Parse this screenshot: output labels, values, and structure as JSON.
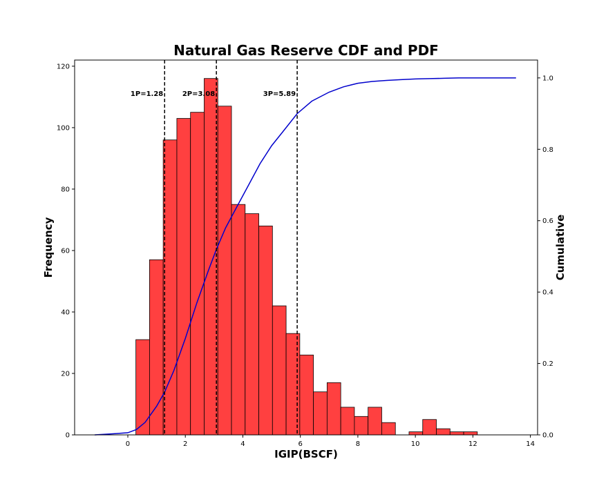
{
  "chart_data": {
    "type": "bar",
    "title": "Natural Gas Reserve CDF and PDF",
    "xlabel": "IGIP(BSCF)",
    "ylabel": "Frequency",
    "y2label": "Cumulative",
    "xlim": [
      -1.85,
      14.25
    ],
    "ylim": [
      0,
      122
    ],
    "y2lim": [
      0,
      1.05
    ],
    "xticks": [
      0,
      2,
      4,
      6,
      8,
      10,
      12,
      14
    ],
    "yticks": [
      0,
      20,
      40,
      60,
      80,
      100,
      120
    ],
    "y2ticks": [
      0.0,
      0.2,
      0.4,
      0.6,
      0.8,
      1.0
    ],
    "bin_edges": [
      0.28,
      0.755,
      1.23,
      1.705,
      2.18,
      2.655,
      3.13,
      3.605,
      4.08,
      4.555,
      5.03,
      5.505,
      5.98,
      6.455,
      6.93,
      7.405,
      7.88,
      8.355,
      8.83,
      9.305,
      9.78,
      10.255,
      10.73,
      11.205,
      11.68,
      12.155
    ],
    "series": [
      {
        "type": "histogram",
        "color": "#ff4040",
        "values": [
          31,
          57,
          96,
          103,
          105,
          116,
          107,
          75,
          72,
          68,
          42,
          33,
          26,
          14,
          17,
          9,
          6,
          9,
          4,
          0,
          1,
          5,
          2,
          1,
          1
        ]
      },
      {
        "type": "line",
        "axis": "right",
        "color": "#0000cc",
        "x": [
          -1.15,
          -0.5,
          0.0,
          0.3,
          0.6,
          1.0,
          1.28,
          1.6,
          2.0,
          2.4,
          2.8,
          3.08,
          3.4,
          3.8,
          4.2,
          4.6,
          5.0,
          5.4,
          5.89,
          6.4,
          7.0,
          7.5,
          8.0,
          8.5,
          9.0,
          9.5,
          10.0,
          10.5,
          11.0,
          11.5,
          12.0,
          12.5,
          13.0,
          13.5
        ],
        "values": [
          0.0,
          0.003,
          0.006,
          0.015,
          0.035,
          0.08,
          0.12,
          0.18,
          0.27,
          0.37,
          0.46,
          0.52,
          0.58,
          0.64,
          0.7,
          0.76,
          0.81,
          0.85,
          0.9,
          0.935,
          0.96,
          0.975,
          0.985,
          0.99,
          0.993,
          0.995,
          0.997,
          0.998,
          0.999,
          1.0,
          1.0,
          1.0,
          1.0,
          1.0
        ]
      }
    ],
    "vlines": [
      {
        "x": 1.28,
        "label": "1P=1.28"
      },
      {
        "x": 3.08,
        "label": "2P=3.08"
      },
      {
        "x": 5.89,
        "label": "3P=5.89"
      }
    ]
  }
}
